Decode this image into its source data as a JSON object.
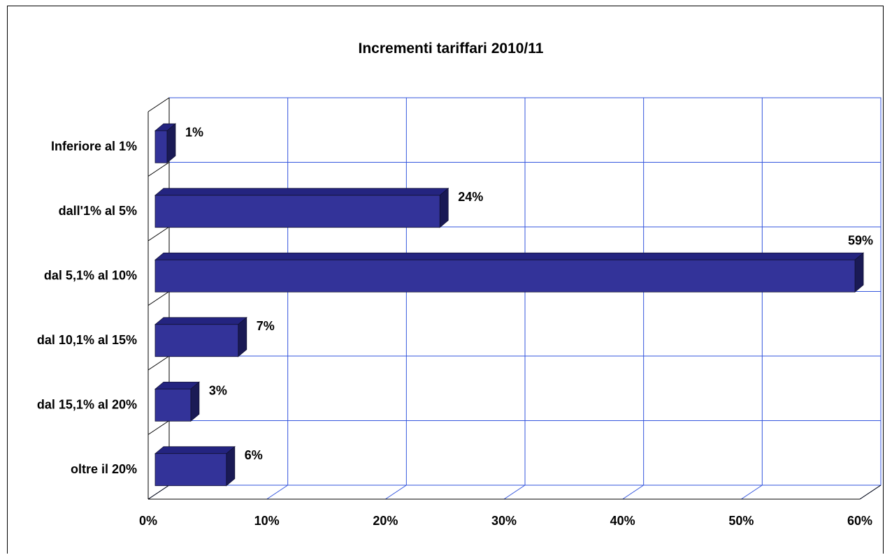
{
  "chart_data": {
    "type": "bar",
    "orientation": "horizontal",
    "style": "3d",
    "title": "Incrementi tariffari 2010/11",
    "categories": [
      "Inferiore al 1%",
      "dall'1% al 5%",
      "dal 5,1% al 10%",
      "dal 10,1% al 15%",
      "dal 15,1% al 20%",
      "oltre il 20%"
    ],
    "values": [
      1,
      24,
      59,
      7,
      3,
      6
    ],
    "data_labels": [
      "1%",
      "24%",
      "59%",
      "7%",
      "3%",
      "6%"
    ],
    "x_ticks": [
      "0%",
      "10%",
      "20%",
      "30%",
      "40%",
      "50%",
      "60%"
    ],
    "xlim": [
      0,
      60
    ],
    "grid": true,
    "legend": "none",
    "colors": {
      "bar_front": "#333399",
      "bar_top": "#242480",
      "bar_side": "#1a1a55",
      "grid": "#3355dd",
      "axis": "#000000"
    }
  }
}
